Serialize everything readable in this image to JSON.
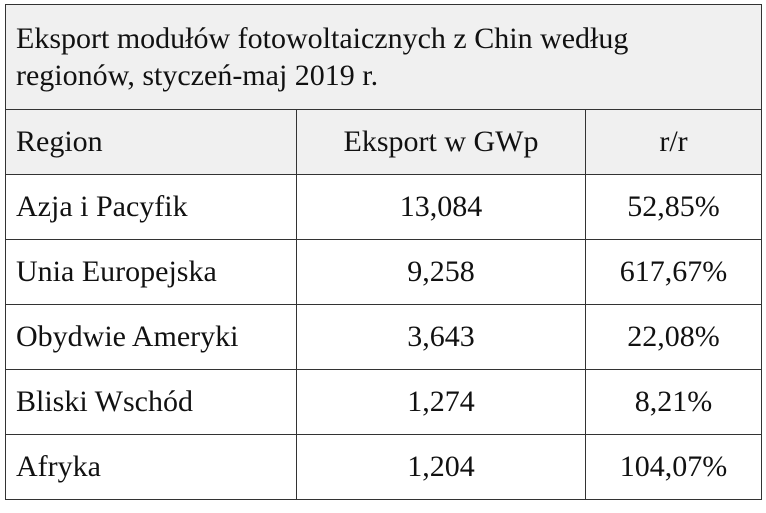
{
  "table": {
    "title": "Eksport modułów fotowoltaicznych z Chin według regionów, styczeń-maj 2019 r.",
    "header": [
      "Region",
      "Eksport w GWp",
      "r/r"
    ],
    "rows": [
      [
        "Azja i Pacyfik",
        "13,084",
        "52,85%"
      ],
      [
        "Unia Europejska",
        "9,258",
        "617,67%"
      ],
      [
        "Obydwie Ameryki",
        "3,643",
        "22,08%"
      ],
      [
        "Bliski Wschód",
        "1,274",
        "8,21%"
      ],
      [
        "Afryka",
        "1,204",
        "104,07%"
      ]
    ]
  }
}
